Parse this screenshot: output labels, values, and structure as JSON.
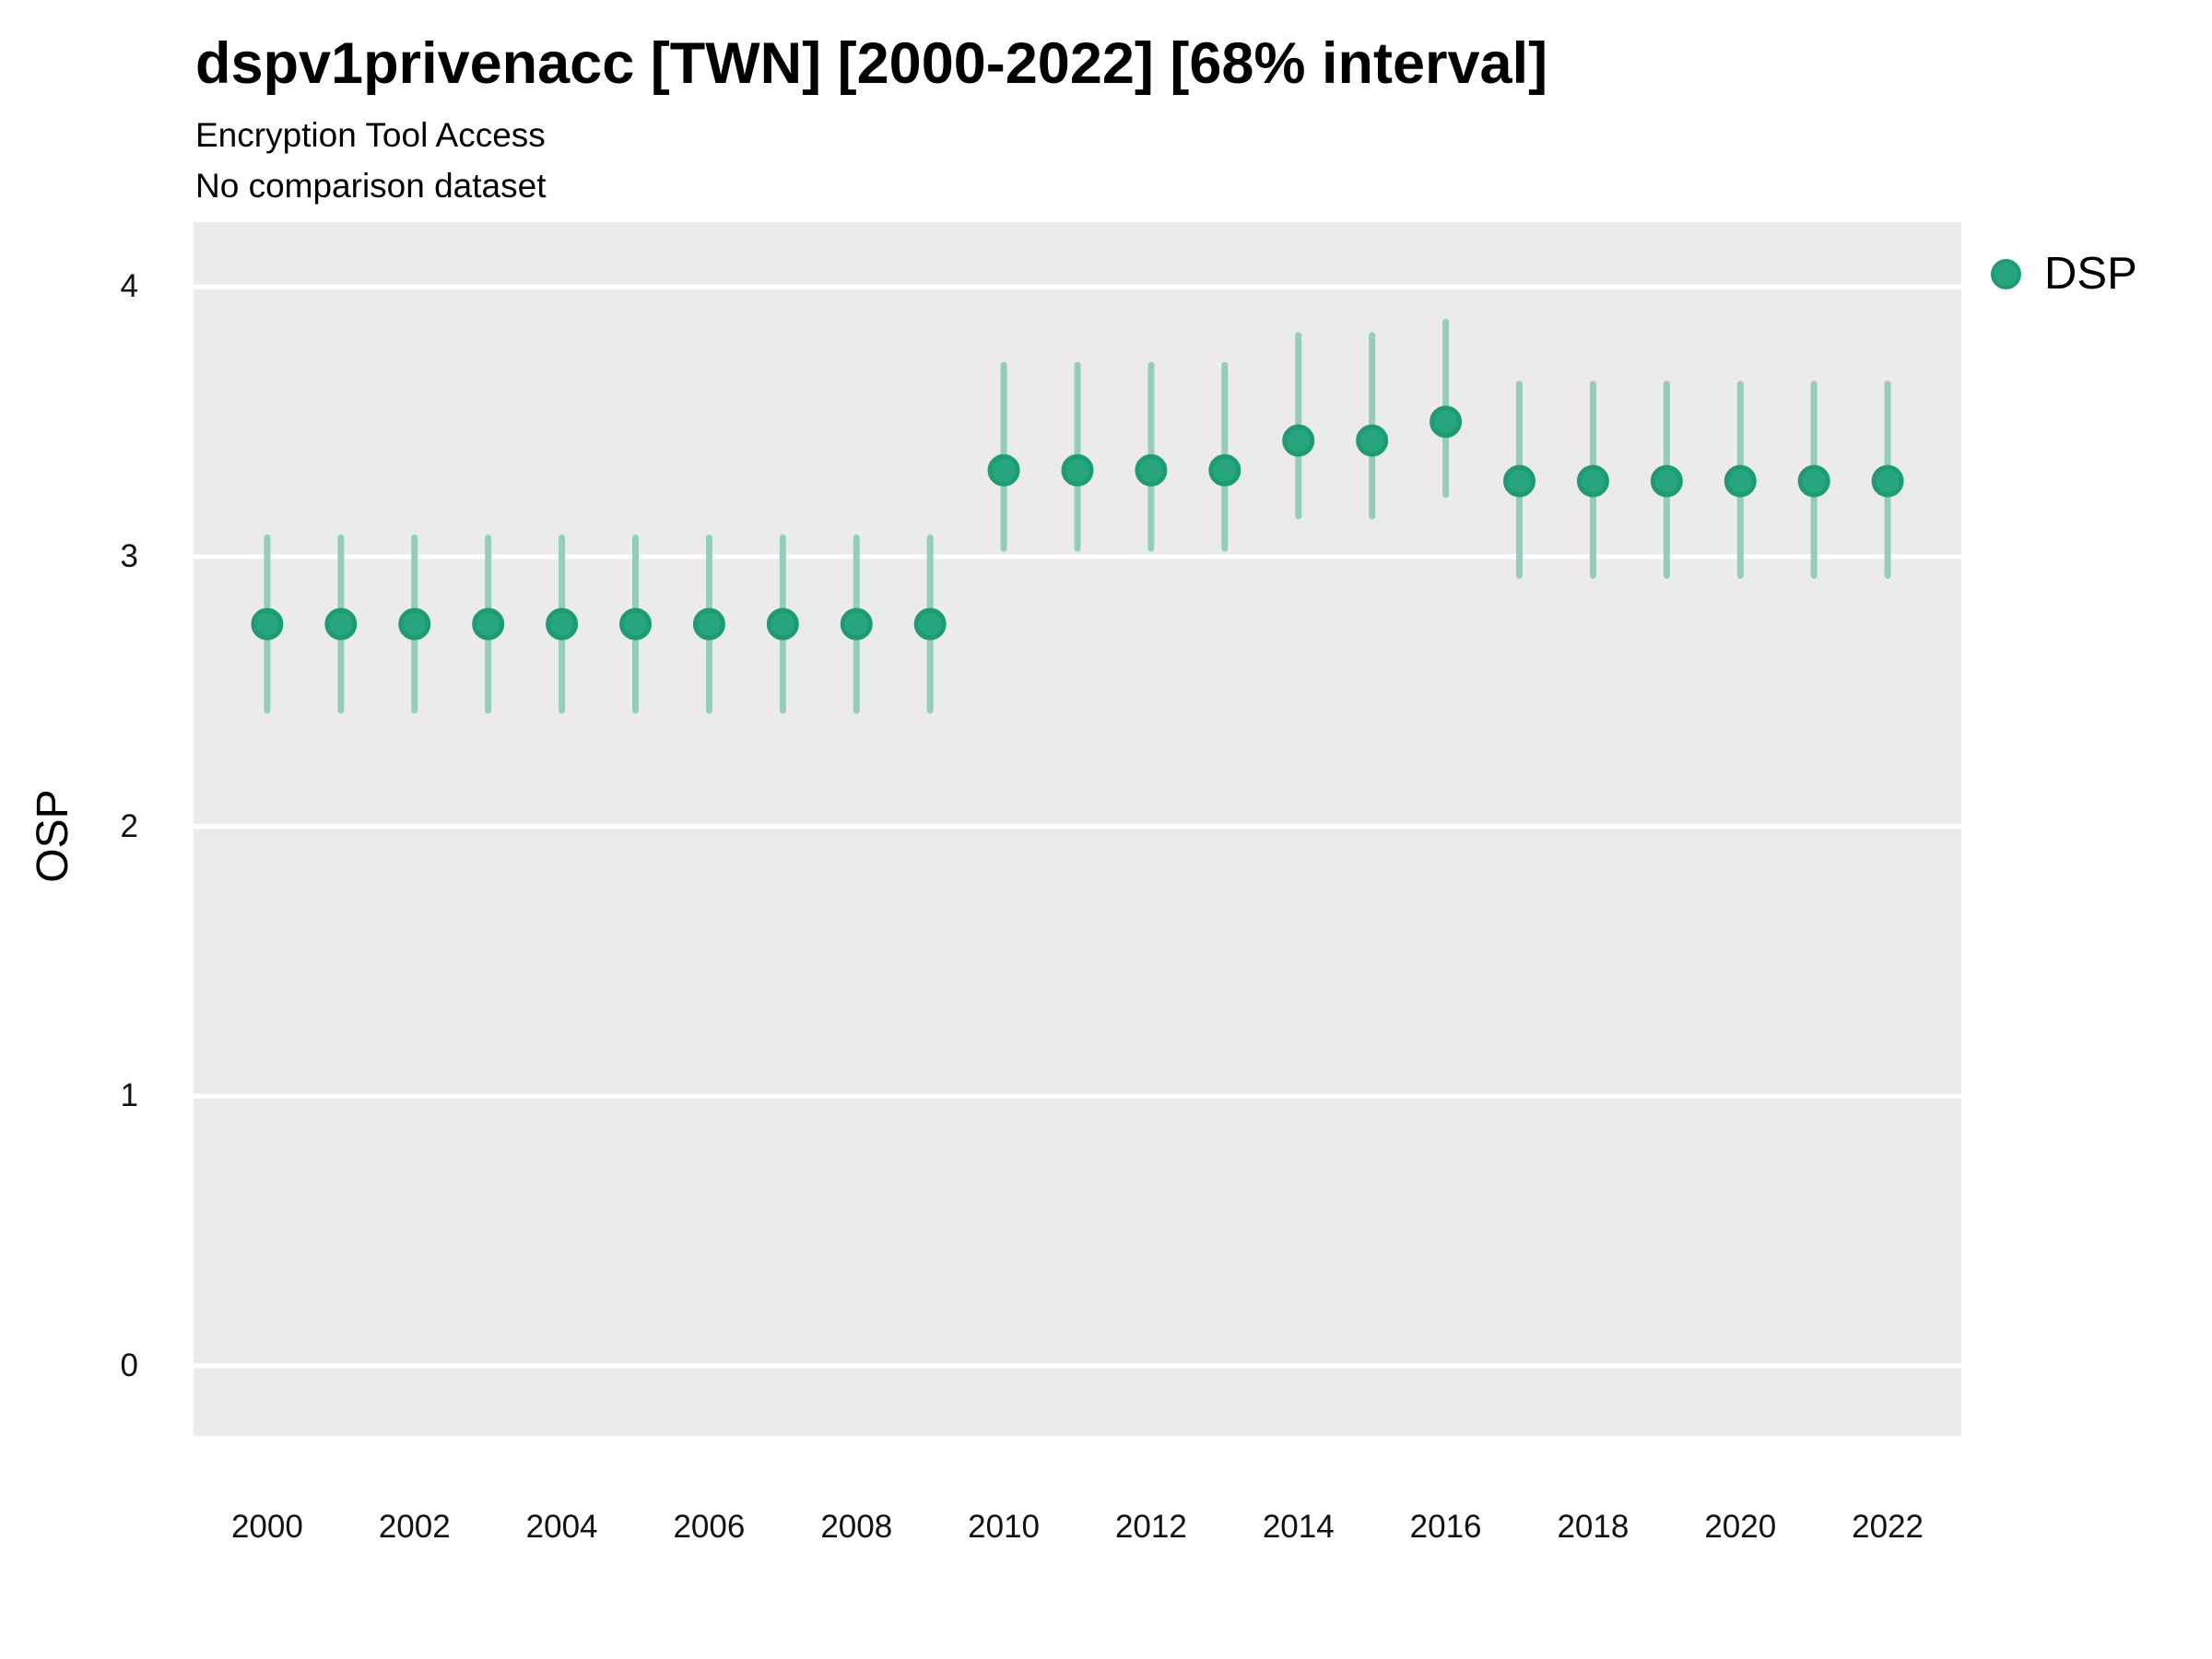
{
  "header": {
    "title": "dspv1privenacc [TWN] [2000-2022] [68% interval]",
    "subtitle_line1": "Encryption Tool Access",
    "subtitle_line2": "No comparison dataset"
  },
  "legend": {
    "label": "DSP"
  },
  "axes": {
    "y_title": "OSP",
    "y_ticks": [
      0,
      1,
      2,
      3,
      4
    ],
    "x_ticks": [
      2000,
      2002,
      2004,
      2006,
      2008,
      2010,
      2012,
      2014,
      2016,
      2018,
      2020,
      2022
    ]
  },
  "chart_data": {
    "type": "pointrange",
    "title": "dspv1privenacc [TWN] [2000-2022] [68% interval]",
    "subtitle": "Encryption Tool Access",
    "note": "No comparison dataset",
    "interval": "68%",
    "xlabel": "",
    "ylabel": "OSP",
    "xlim": [
      1999,
      2023
    ],
    "ylim": [
      -0.26,
      4.24
    ],
    "grid": "major-horizontal-only",
    "legend_position": "right-top",
    "x": [
      2000,
      2001,
      2002,
      2003,
      2004,
      2005,
      2006,
      2007,
      2008,
      2009,
      2010,
      2011,
      2012,
      2013,
      2014,
      2015,
      2016,
      2017,
      2018,
      2019,
      2020,
      2021,
      2022
    ],
    "series": [
      {
        "name": "DSP",
        "mid": [
          2.75,
          2.75,
          2.75,
          2.75,
          2.75,
          2.75,
          2.75,
          2.75,
          2.75,
          2.75,
          3.32,
          3.32,
          3.32,
          3.32,
          3.43,
          3.43,
          3.5,
          3.28,
          3.28,
          3.28,
          3.28,
          3.28,
          3.28
        ],
        "lo": [
          2.43,
          2.43,
          2.43,
          2.43,
          2.43,
          2.43,
          2.43,
          2.43,
          2.43,
          2.43,
          3.03,
          3.03,
          3.03,
          3.03,
          3.15,
          3.15,
          3.23,
          2.93,
          2.93,
          2.93,
          2.93,
          2.93,
          2.93
        ],
        "hi": [
          3.07,
          3.07,
          3.07,
          3.07,
          3.07,
          3.07,
          3.07,
          3.07,
          3.07,
          3.07,
          3.71,
          3.71,
          3.71,
          3.71,
          3.82,
          3.82,
          3.87,
          3.64,
          3.64,
          3.64,
          3.64,
          3.64,
          3.64
        ]
      }
    ],
    "colors": {
      "panel_background": "#EBEBEB",
      "gridline": "#FFFFFF",
      "interval_bar": "#93CDBB",
      "point_fill": "#27A57E",
      "point_stroke": "#1E9B72"
    }
  }
}
